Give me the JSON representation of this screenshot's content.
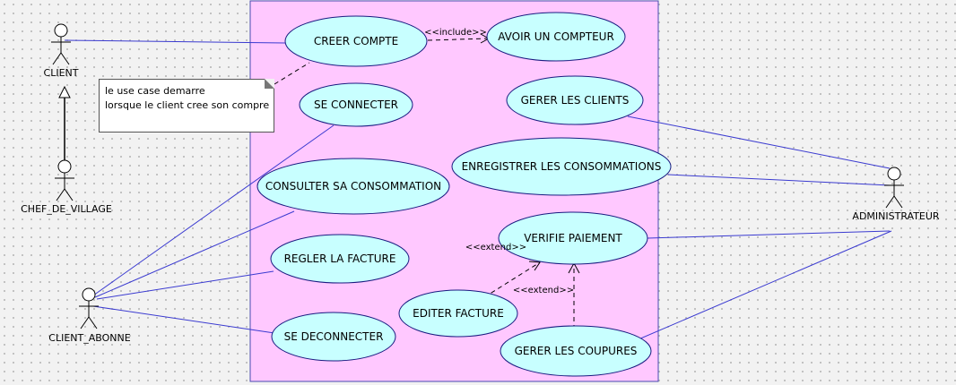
{
  "colors": {
    "system_fill": "#ffc8ff",
    "system_stroke": "#4a4ab0",
    "usecase_fill": "#c8ffff",
    "usecase_stroke": "#1a1a80",
    "association": "#3a3ad0",
    "dependency": "#000000"
  },
  "actors": {
    "client": "CLIENT",
    "chef_de_village": "CHEF_DE_VILLAGE",
    "client_abonne": "CLIENT_ABONNE",
    "administrateur": "ADMINISTRATEUR"
  },
  "use_cases": {
    "creer_compte": "CREER COMPTE",
    "avoir_un_compteur": "AVOIR UN COMPTEUR",
    "se_connecter": "SE CONNECTER",
    "gerer_les_clients": "GERER LES CLIENTS",
    "enregistrer_les_consommations": "ENREGISTRER LES CONSOMMATIONS",
    "consulter_sa_consommation": "CONSULTER SA CONSOMMATION",
    "regler_la_facture": "REGLER LA FACTURE",
    "verifie_paiement": "VERIFIE PAIEMENT",
    "editer_facture": "EDITER FACTURE",
    "se_deconnecter": "SE DECONNECTER",
    "gerer_les_coupures": "GERER LES COUPURES"
  },
  "stereotypes": {
    "include": "<<include>>",
    "extend_editer": "<<extend>>",
    "extend_coupures": "<<extend>>"
  },
  "note": {
    "line1": "le use case demarre",
    "line2": "lorsque le client cree son compre"
  }
}
